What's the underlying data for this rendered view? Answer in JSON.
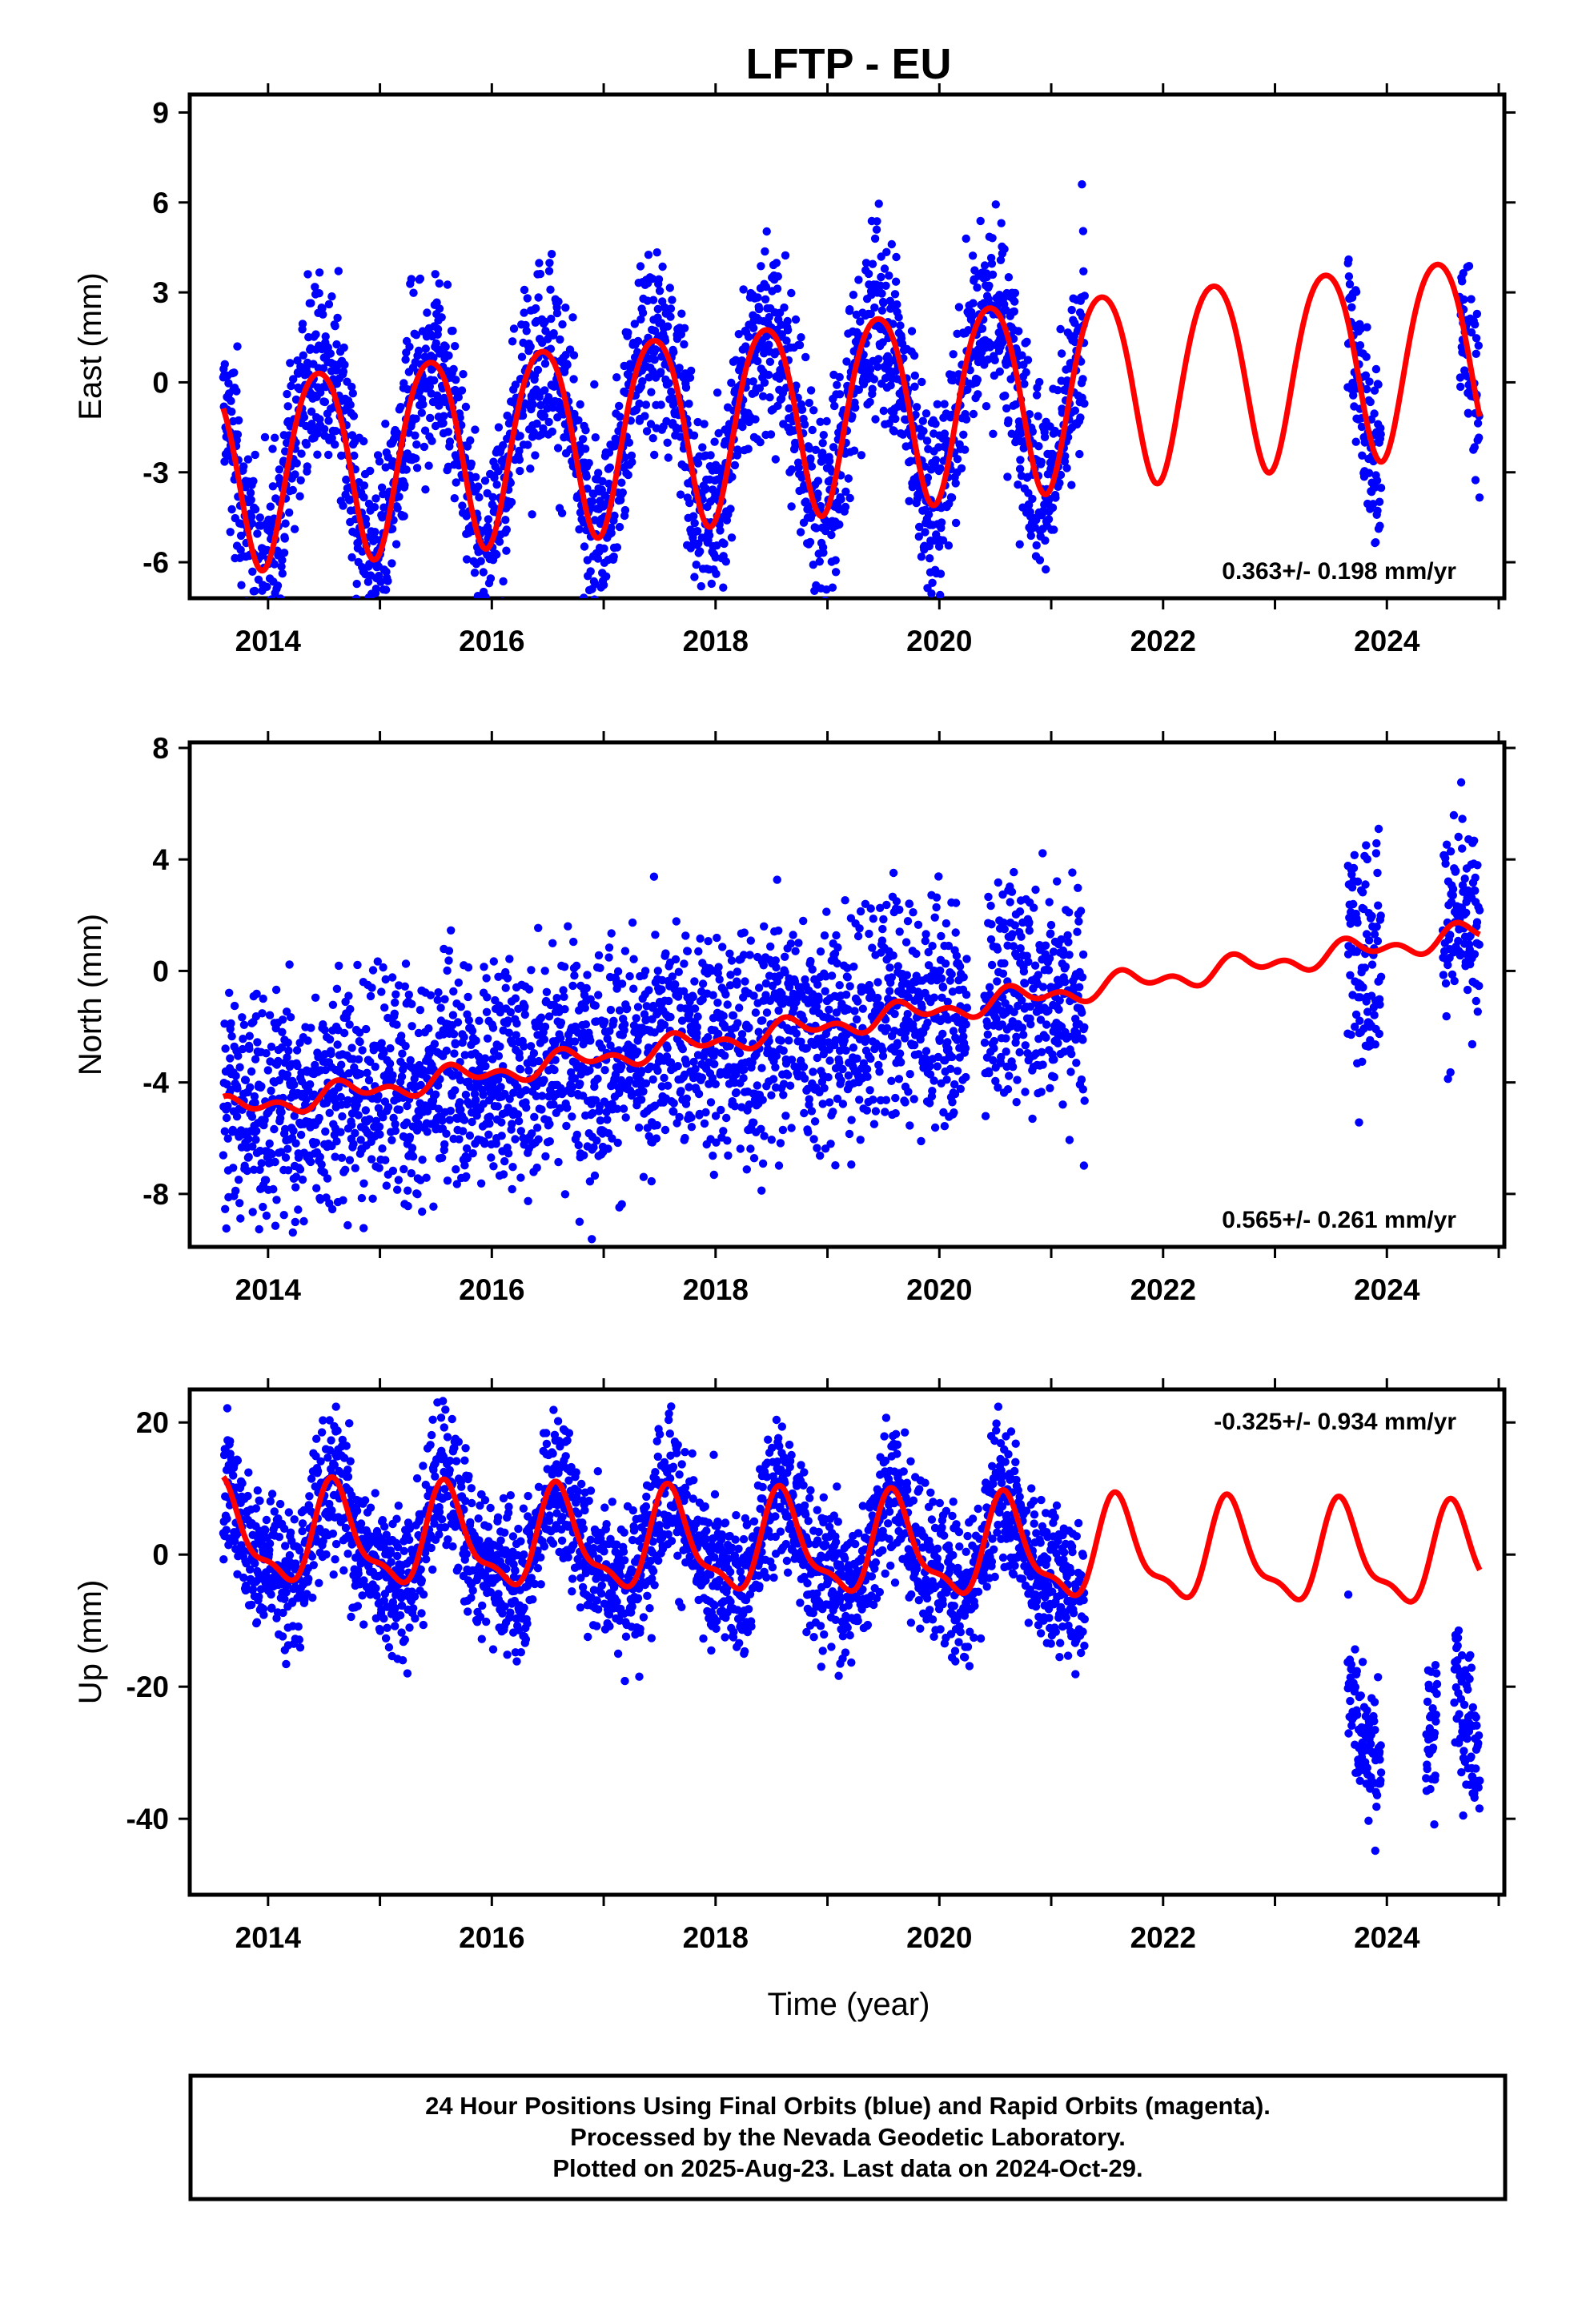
{
  "title": "LFTP - EU",
  "colors": {
    "observations": "#0000ff",
    "model": "#ff0000",
    "frame": "#000000"
  },
  "footer": {
    "lines": [
      "24 Hour Positions Using Final Orbits (blue) and Rapid Orbits (magenta).",
      "Processed by the Nevada Geodetic Laboratory.",
      "Plotted on 2025-Aug-23. Last data on 2024-Oct-29."
    ]
  },
  "chart_data": [
    {
      "type": "scatter",
      "component": "east",
      "ylabel": "East (mm)",
      "xlabel": "",
      "xlim": [
        2013.3,
        2025.05
      ],
      "ylim": [
        -7.2,
        9.6
      ],
      "xticks": [
        "2014",
        "2016",
        "2018",
        "2020",
        "2022",
        "2024"
      ],
      "yticks": [
        "9",
        "6",
        "3",
        "0",
        "-3",
        "-6"
      ],
      "rate_label": "0.363+/- 0.198 mm/yr",
      "rate_position": "bottom-right",
      "data_intervals": [
        [
          2013.6,
          2021.3
        ],
        [
          2023.65,
          2023.95
        ],
        [
          2024.65,
          2024.83
        ]
      ],
      "model": {
        "mean": -0.9,
        "trend": 0.363,
        "annual": 3.2,
        "annual_peak": 0.45,
        "semiannual": 0.35,
        "semiannual_peak": 0.2,
        "start": 2013.6,
        "end": 2024.83
      },
      "scatter_sigma": 1.6,
      "series": [
        {
          "name": "",
          "kind": "points"
        },
        {
          "name": "",
          "kind": "model"
        }
      ]
    },
    {
      "type": "scatter",
      "component": "north",
      "ylabel": "North (mm)",
      "xlabel": "",
      "xlim": [
        2013.3,
        2025.05
      ],
      "ylim": [
        -9.9,
        8.2
      ],
      "xticks": [
        "2014",
        "2016",
        "2018",
        "2020",
        "2022",
        "2024"
      ],
      "yticks": [
        "8",
        "4",
        "0",
        "-4",
        "-8"
      ],
      "rate_label": "0.565+/- 0.261 mm/yr",
      "rate_position": "bottom-right",
      "data_intervals": [
        [
          2013.6,
          2020.25
        ],
        [
          2020.4,
          2021.3
        ],
        [
          2023.65,
          2023.95
        ],
        [
          2024.5,
          2024.83
        ]
      ],
      "model": {
        "mean": -1.95,
        "trend": 0.565,
        "annual": 0.3,
        "annual_peak": 0.7,
        "semiannual": 0.25,
        "semiannual_peak": 0.1,
        "start": 2013.6,
        "end": 2024.83
      },
      "scatter_sigma": 2.0,
      "series": [
        {
          "name": "",
          "kind": "points"
        },
        {
          "name": "",
          "kind": "model"
        }
      ]
    },
    {
      "type": "scatter",
      "component": "up",
      "ylabel": "Up (mm)",
      "xlabel": "Time (year)",
      "xlim": [
        2013.3,
        2025.05
      ],
      "ylim": [
        -51.5,
        25
      ],
      "xticks": [
        "2014",
        "2016",
        "2018",
        "2020",
        "2022",
        "2024"
      ],
      "yticks": [
        "20",
        "0",
        "-20",
        "-40"
      ],
      "rate_label": "-0.325+/- 0.934 mm/yr",
      "rate_position": "top-right",
      "data_intervals": [
        [
          2013.6,
          2021.3
        ],
        [
          2023.65,
          2023.95
        ],
        [
          2024.35,
          2024.45
        ],
        [
          2024.6,
          2024.83
        ]
      ],
      "offset_after": {
        "year": 2023.5,
        "shift": -27
      },
      "model": {
        "mean": 1.0,
        "trend": -0.325,
        "annual": 7.0,
        "annual_peak": 0.6,
        "semiannual": 2.5,
        "semiannual_peak": 0.55,
        "start": 2013.6,
        "end": 2024.83
      },
      "scatter_sigma": 5.5,
      "series": [
        {
          "name": "",
          "kind": "points"
        },
        {
          "name": "",
          "kind": "model"
        }
      ]
    }
  ]
}
